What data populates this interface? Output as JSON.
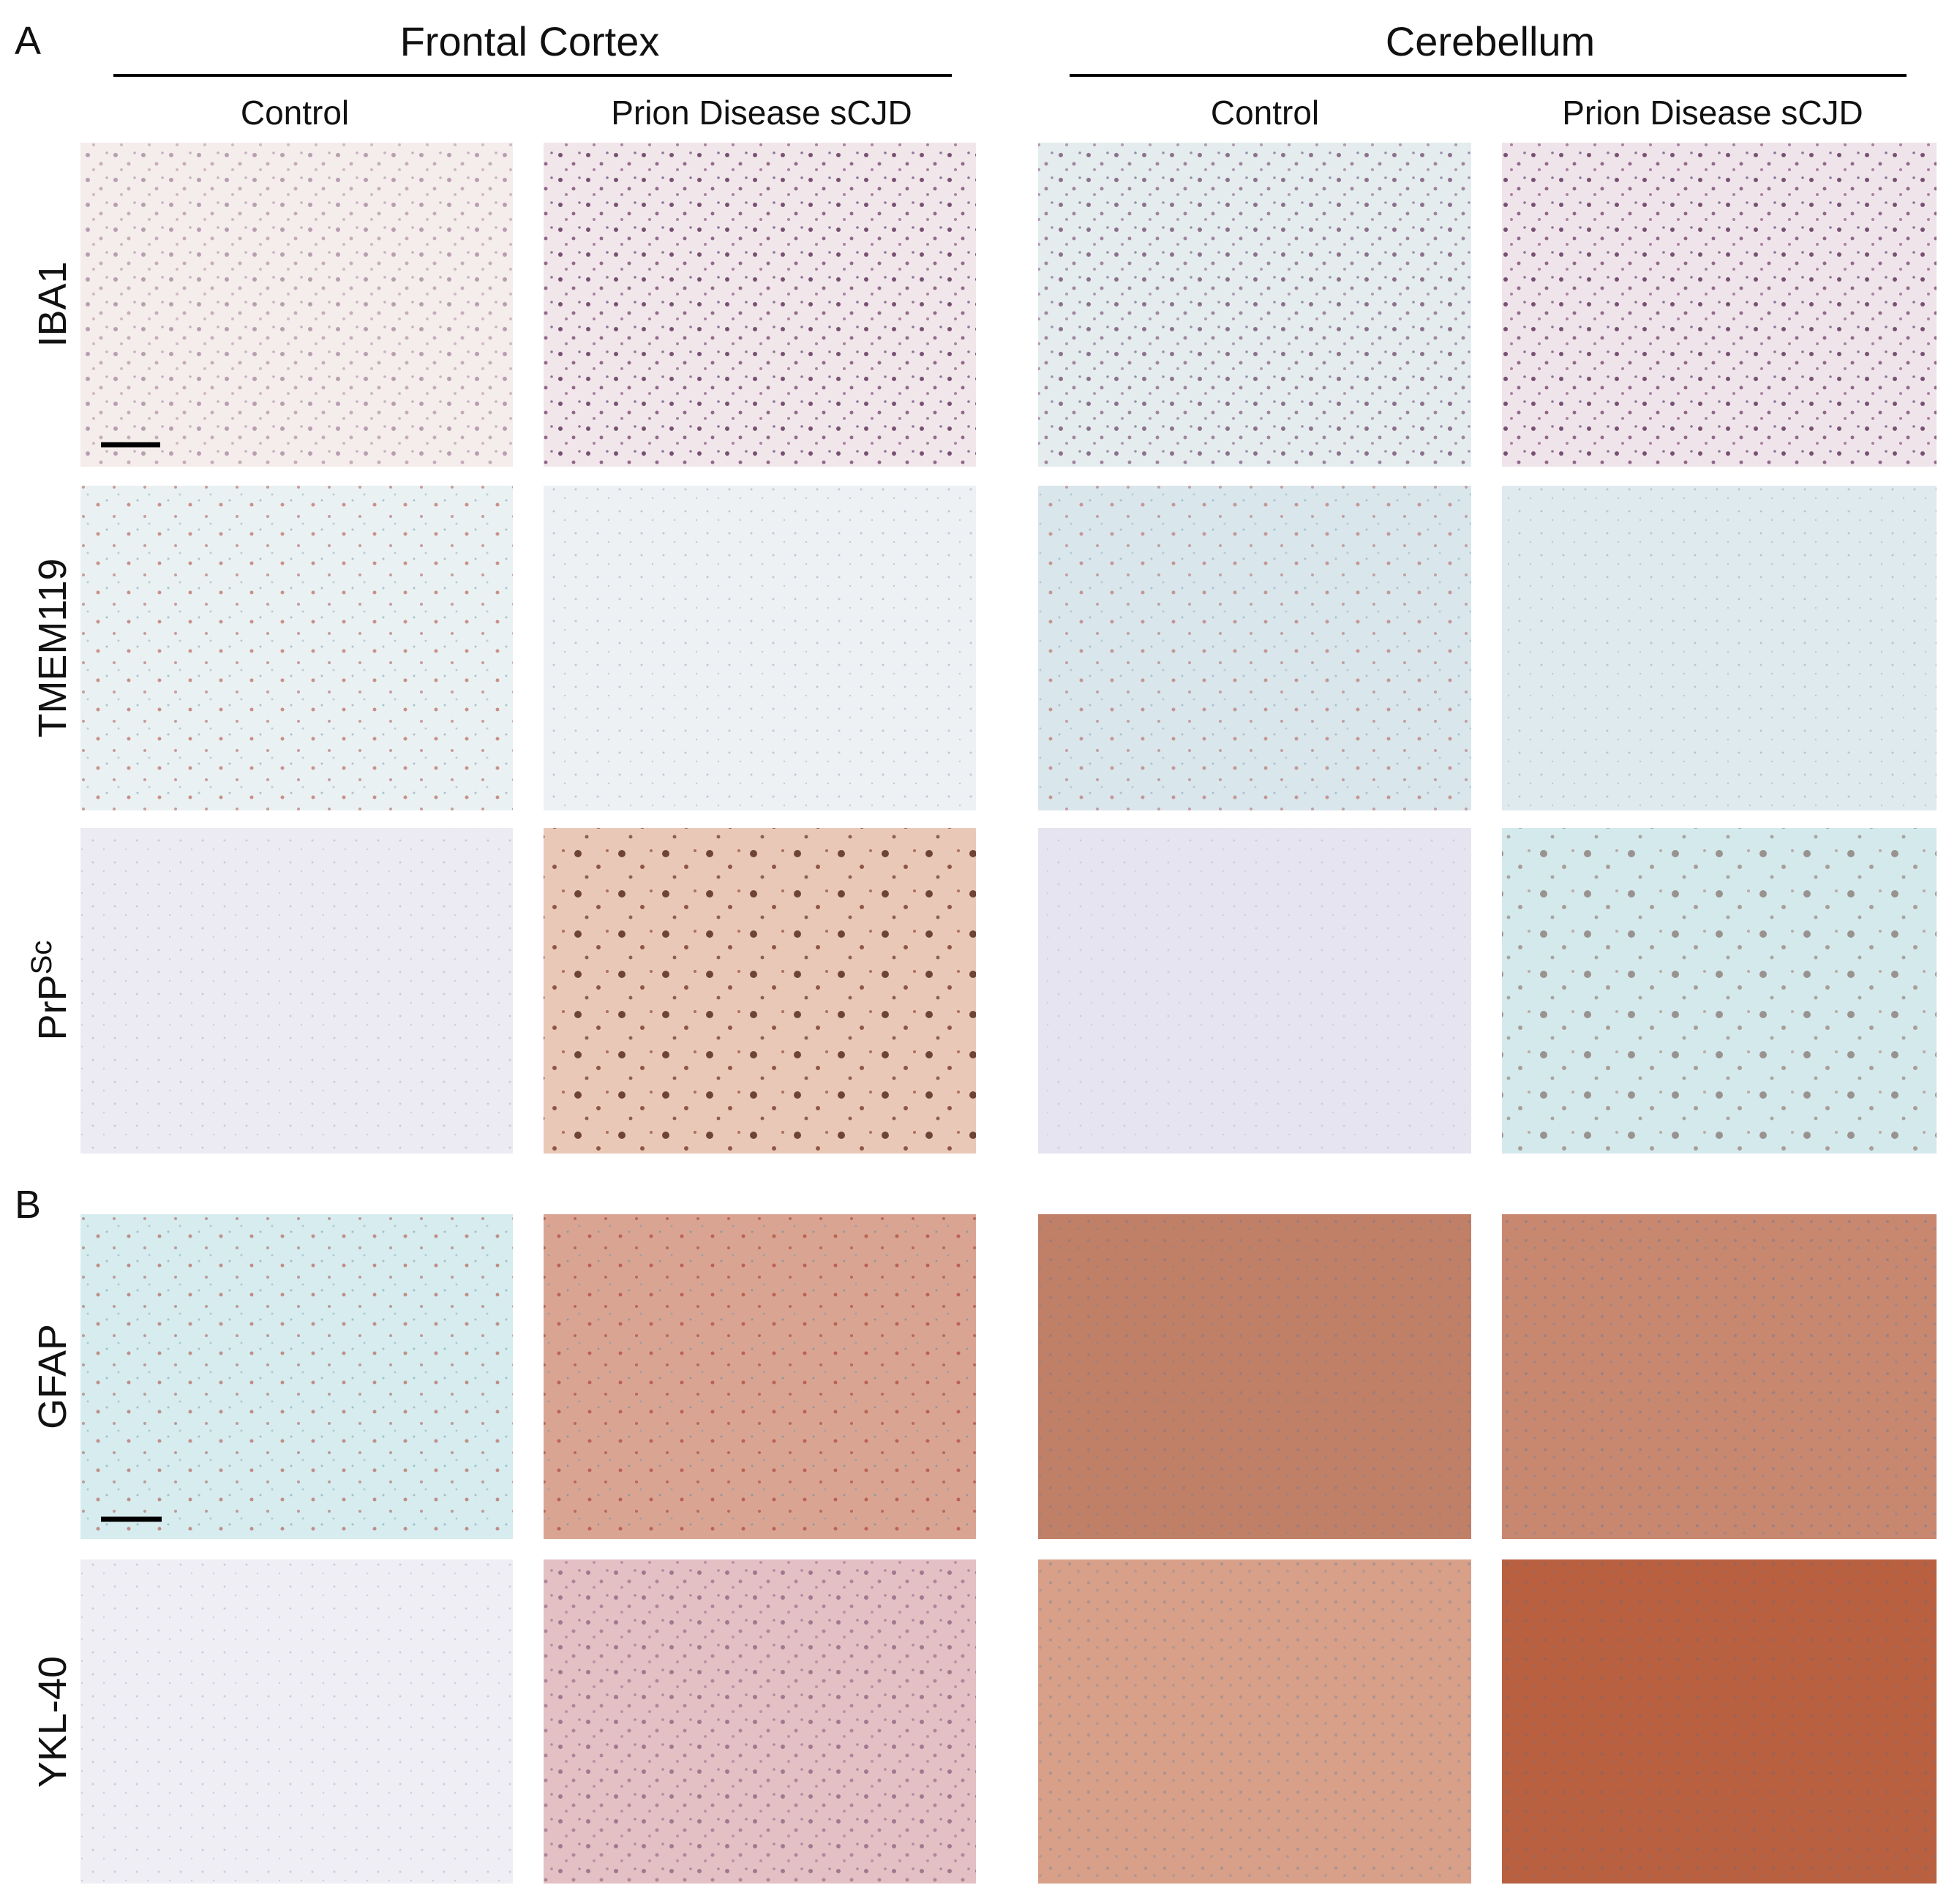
{
  "panel_labels": [
    "A",
    "B"
  ],
  "groups": [
    {
      "title": "Frontal Cortex",
      "columns": [
        "Control",
        "Prion Disease sCJD"
      ]
    },
    {
      "title": "Cerebellum",
      "columns": [
        "Control",
        "Prion Disease sCJD"
      ]
    }
  ],
  "rows": [
    {
      "label": "IBA1"
    },
    {
      "label": "TMEM119"
    },
    {
      "label": "PrP",
      "superscript": "Sc"
    },
    {
      "label": "GFAP"
    },
    {
      "label": "YKL-40"
    }
  ]
}
